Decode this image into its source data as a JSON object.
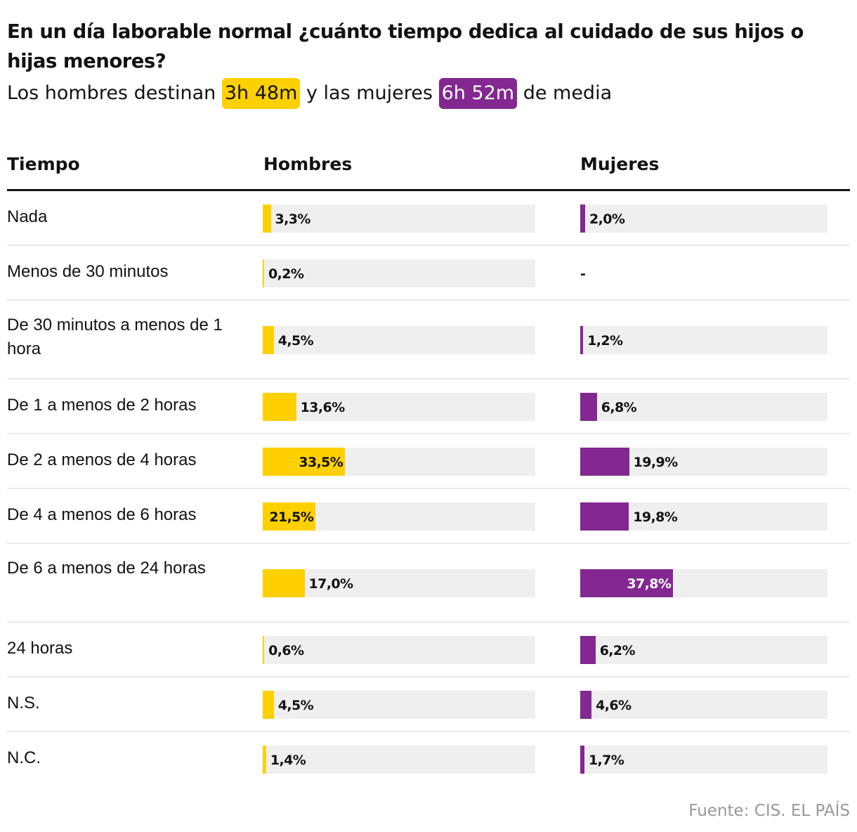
{
  "title": "En un día laborable normal ¿cuánto tiempo dedica al cuidado de sus hijos o hijas menores?",
  "subtitle": {
    "prefix": "Los hombres destinan",
    "men_value": "3h 48m",
    "middle": "y las mujeres",
    "women_value": "6h 52m",
    "suffix": "de media"
  },
  "colors": {
    "men": "#ffd000",
    "women": "#822890",
    "track": "#efefef"
  },
  "chart_data": {
    "type": "table",
    "columns": [
      "Tiempo",
      "Hombres",
      "Mujeres"
    ],
    "scale_max": 100,
    "rows": [
      {
        "label": "Nada",
        "men": 3.3,
        "men_label": "3,3%",
        "women": 2.0,
        "women_label": "2,0%"
      },
      {
        "label": "Menos de 30 minutos",
        "men": 0.2,
        "men_label": "0,2%",
        "women": null,
        "women_label": "-"
      },
      {
        "label": "De 30 minutos a menos de 1 hora",
        "men": 4.5,
        "men_label": "4,5%",
        "women": 1.2,
        "women_label": "1,2%"
      },
      {
        "label": "De 1 a menos de 2 horas",
        "men": 13.6,
        "men_label": "13,6%",
        "women": 6.8,
        "women_label": "6,8%"
      },
      {
        "label": "De 2 a menos de 4 horas",
        "men": 33.5,
        "men_label": "33,5%",
        "women": 19.9,
        "women_label": "19,9%"
      },
      {
        "label": "De 4 a menos de 6 horas",
        "men": 21.5,
        "men_label": "21,5%",
        "women": 19.8,
        "women_label": "19,8%"
      },
      {
        "label": "De 6 a menos de 24 horas",
        "men": 17.0,
        "men_label": "17,0%",
        "women": 37.8,
        "women_label": "37,8%"
      },
      {
        "label": "24 horas",
        "men": 0.6,
        "men_label": "0,6%",
        "women": 6.2,
        "women_label": "6,2%"
      },
      {
        "label": "N.S.",
        "men": 4.5,
        "men_label": "4,5%",
        "women": 4.6,
        "women_label": "4,6%"
      },
      {
        "label": "N.C.",
        "men": 1.4,
        "men_label": "1,4%",
        "women": 1.7,
        "women_label": "1,7%"
      }
    ]
  },
  "source": "Fuente: CIS. EL PAÍS"
}
